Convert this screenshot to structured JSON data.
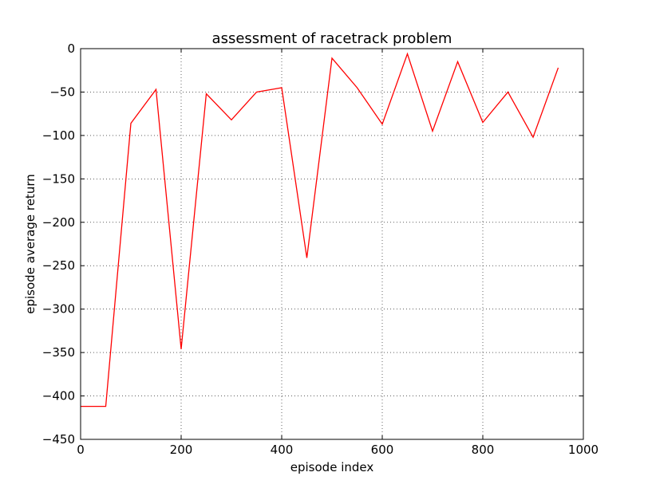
{
  "chart_data": {
    "type": "line",
    "title": "assessment of racetrack problem",
    "xlabel": "episode index",
    "ylabel": "episode average return",
    "xlim": [
      0,
      1000
    ],
    "ylim": [
      -450,
      0
    ],
    "xticks": [
      0,
      200,
      400,
      600,
      800,
      1000
    ],
    "yticks": [
      0,
      -50,
      -100,
      -150,
      -200,
      -250,
      -300,
      -350,
      -400,
      -450
    ],
    "xtick_labels": [
      "0",
      "200",
      "400",
      "600",
      "800",
      "1000"
    ],
    "ytick_labels": [
      "0",
      "−50",
      "−100",
      "−150",
      "−200",
      "−250",
      "−300",
      "−350",
      "−400",
      "−450"
    ],
    "grid": true,
    "series": [
      {
        "color": "#ff0000",
        "x": [
          0,
          50,
          100,
          150,
          200,
          250,
          300,
          350,
          400,
          450,
          500,
          550,
          600,
          650,
          700,
          750,
          800,
          850,
          900,
          950
        ],
        "y": [
          -412,
          -412,
          -86,
          -47,
          -346,
          -52,
          -82,
          -50,
          -45,
          -241,
          -11,
          -45,
          -87,
          -6,
          -95,
          -15,
          -85,
          -50,
          -102,
          -22
        ]
      }
    ]
  }
}
